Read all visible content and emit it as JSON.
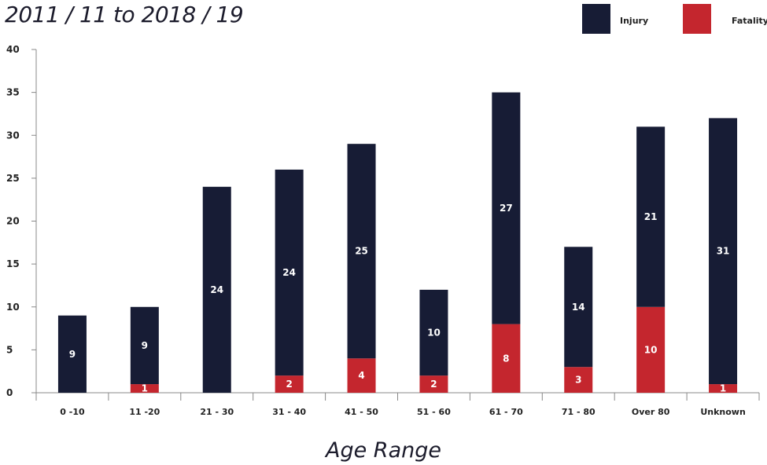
{
  "header": {
    "subtitle": "2011 / 11 to 2018 / 19"
  },
  "colors": {
    "injury": "#171c35",
    "fatality": "#c4262e",
    "axis": "#888888",
    "text": "#1b1b2b"
  },
  "chart_data": {
    "type": "bar",
    "stacked": true,
    "title": "",
    "subtitle": "2011 / 11 to 2018 / 19",
    "xlabel": "Age Range",
    "ylabel": "",
    "ylim": [
      0,
      40
    ],
    "yticks": [
      0,
      5,
      10,
      15,
      20,
      25,
      30,
      35,
      40
    ],
    "grid": false,
    "legend_position": "top-right",
    "categories": [
      "0 -10",
      "11 -20",
      "21 - 30",
      "31 - 40",
      "41 - 50",
      "51 - 60",
      "61 - 70",
      "71 - 80",
      "Over 80",
      "Unknown"
    ],
    "series": [
      {
        "name": "Fatality",
        "color": "#c4262e",
        "values": [
          0,
          1,
          0,
          2,
          4,
          2,
          8,
          3,
          10,
          1
        ]
      },
      {
        "name": "Injury",
        "color": "#171c35",
        "values": [
          9,
          9,
          24,
          24,
          25,
          10,
          27,
          14,
          21,
          31
        ]
      }
    ]
  }
}
